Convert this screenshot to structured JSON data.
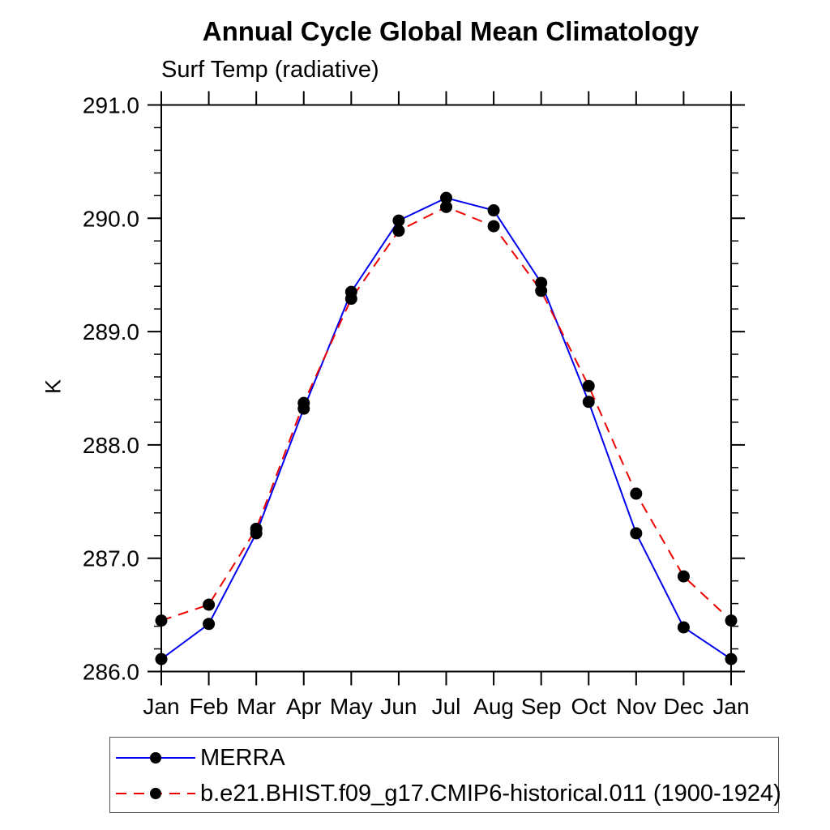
{
  "header": {
    "title": "Annual Cycle Global Mean Climatology",
    "subtitle": "Surf Temp (radiative)"
  },
  "chart_data": {
    "type": "line",
    "title": "Annual Cycle Global Mean Climatology",
    "subtitle": "Surf Temp (radiative)",
    "xlabel": "",
    "ylabel": "K",
    "categories": [
      "Jan",
      "Feb",
      "Mar",
      "Apr",
      "May",
      "Jun",
      "Jul",
      "Aug",
      "Sep",
      "Oct",
      "Nov",
      "Dec",
      "Jan"
    ],
    "ylim": [
      286.0,
      291.0
    ],
    "ytick_major_step": 1.0,
    "ytick_minor_step": 0.2,
    "ytick_labels": [
      "286.0",
      "287.0",
      "288.0",
      "289.0",
      "290.0",
      "291.0"
    ],
    "grid": false,
    "legend_position": "bottom-left",
    "frame_color": "#000000",
    "marker_color": "#000000",
    "series": [
      {
        "name": "MERRA",
        "color": "#0000ee",
        "style": "solid",
        "marker": "circle",
        "values": [
          286.11,
          286.42,
          287.22,
          288.32,
          289.35,
          289.98,
          290.18,
          290.07,
          289.43,
          288.38,
          287.22,
          286.39,
          286.11
        ]
      },
      {
        "name": "b.e21.BHIST.f09_g17.CMIP6-historical.011 (1900-1924)",
        "color": "#ee0000",
        "style": "dashed",
        "marker": "circle",
        "values": [
          286.45,
          286.59,
          287.26,
          288.37,
          289.29,
          289.89,
          290.1,
          289.93,
          289.36,
          288.52,
          287.57,
          286.84,
          286.45
        ]
      }
    ]
  }
}
